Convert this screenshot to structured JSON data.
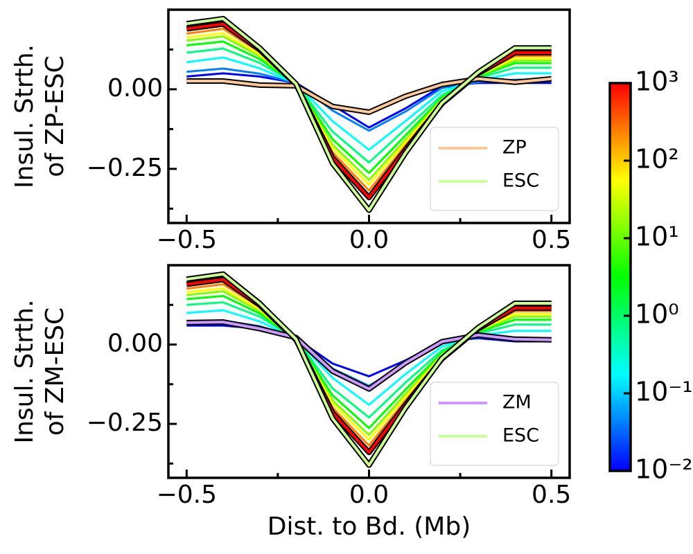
{
  "chart_data": [
    {
      "type": "line",
      "ylabel": [
        "Insul. Strth.",
        "of ZP-ESC"
      ],
      "x": [
        -0.5,
        -0.4,
        -0.3,
        -0.2,
        -0.1,
        0,
        0.1,
        0.2,
        0.3,
        0.4,
        0.5
      ],
      "xlim": [
        -0.55,
        0.55
      ],
      "ylim": [
        -0.42,
        0.25
      ],
      "xticks": [
        {
          "value": -0.5,
          "label": "−0.5"
        },
        {
          "value": 0,
          "label": "0.0"
        },
        0.5
      ],
      "xminor": [
        -0.25,
        0.25
      ],
      "yticks": [
        {
          "value": -0.25,
          "label": "−0.25"
        },
        {
          "value": 0,
          "label": "0.00"
        }
      ],
      "yminor": [
        -0.375,
        -0.125,
        0.125
      ],
      "legend": "lower right",
      "series": [
        {
          "color": "#0000ff",
          "values": [
            0.04,
            0.05,
            0.04,
            0.02,
            -0.05,
            -0.12,
            -0.06,
            0.01,
            0.02,
            0.02,
            0.02
          ]
        },
        {
          "color": "#0080ff",
          "values": [
            0.055,
            0.065,
            0.049,
            0.02,
            -0.067,
            -0.13,
            -0.07,
            0.004,
            0.023,
            0.03,
            0.03
          ]
        },
        {
          "color": "#00ffff",
          "values": [
            0.085,
            0.1,
            0.066,
            0.018,
            -0.1,
            -0.19,
            -0.1,
            -0.006,
            0.029,
            0.05,
            0.05
          ]
        },
        {
          "color": "#00ff80",
          "values": [
            0.115,
            0.128,
            0.083,
            0.018,
            -0.133,
            -0.23,
            -0.125,
            -0.018,
            0.035,
            0.068,
            0.068
          ]
        },
        {
          "color": "#00ff00",
          "values": [
            0.138,
            0.15,
            0.095,
            0.017,
            -0.157,
            -0.263,
            -0.145,
            -0.026,
            0.04,
            0.082,
            0.082
          ]
        },
        {
          "color": "#80ff00",
          "values": [
            0.153,
            0.166,
            0.104,
            0.016,
            -0.174,
            -0.285,
            -0.158,
            -0.031,
            0.043,
            0.09,
            0.09
          ]
        },
        {
          "color": "#ffff00",
          "values": [
            0.163,
            0.176,
            0.11,
            0.016,
            -0.185,
            -0.3,
            -0.166,
            -0.035,
            0.045,
            0.097,
            0.097
          ]
        },
        {
          "color": "#ff8000",
          "values": [
            0.175,
            0.19,
            0.117,
            0.016,
            -0.198,
            -0.318,
            -0.176,
            -0.04,
            0.047,
            0.105,
            0.105
          ]
        },
        {
          "color": "#ff0000",
          "edgecolor": "#000000",
          "values": [
            0.19,
            0.205,
            0.125,
            0.015,
            -0.215,
            -0.34,
            -0.19,
            -0.045,
            0.05,
            0.115,
            0.115
          ]
        },
        {
          "name": "ZP",
          "color": "#ffc898",
          "edgecolor": "#000000",
          "values": [
            0.026,
            0.026,
            0.013,
            0.011,
            -0.054,
            -0.072,
            -0.022,
            0.015,
            0.033,
            0.022,
            0.033
          ]
        },
        {
          "name": "ESC",
          "color": "#ccff99",
          "edgecolor": "#000000",
          "values": [
            0.206,
            0.222,
            0.13,
            0.017,
            -0.233,
            -0.38,
            -0.2,
            -0.043,
            0.054,
            0.13,
            0.13
          ]
        }
      ]
    },
    {
      "type": "line",
      "ylabel": [
        "Insul. Strth.",
        "of ZM-ESC"
      ],
      "xlabel": "Dist. to Bd. (Mb)",
      "x": [
        -0.5,
        -0.4,
        -0.3,
        -0.2,
        -0.1,
        0,
        0.1,
        0.2,
        0.3,
        0.4,
        0.5
      ],
      "xlim": [
        -0.55,
        0.55
      ],
      "ylim": [
        -0.42,
        0.25
      ],
      "xticks": [
        {
          "value": -0.5,
          "label": "−0.5"
        },
        {
          "value": 0,
          "label": "0.0"
        },
        0.5
      ],
      "xminor": [
        -0.25,
        0.25
      ],
      "yticks": [
        {
          "value": -0.25,
          "label": "−0.25"
        },
        {
          "value": 0,
          "label": "0.00"
        }
      ],
      "yminor": [
        -0.375,
        -0.125,
        0.125
      ],
      "legend": "lower right",
      "series": [
        {
          "color": "#0000ff",
          "values": [
            0.06,
            0.06,
            0.05,
            0.02,
            -0.06,
            -0.1,
            -0.05,
            0.01,
            0.02,
            0.01,
            0.01
          ]
        },
        {
          "color": "#0080ff",
          "values": [
            0.072,
            0.075,
            0.058,
            0.02,
            -0.076,
            -0.13,
            -0.063,
            0.004,
            0.023,
            0.02,
            0.02
          ]
        },
        {
          "color": "#00ffff",
          "values": [
            0.1,
            0.108,
            0.073,
            0.018,
            -0.105,
            -0.19,
            -0.093,
            -0.006,
            0.029,
            0.043,
            0.043
          ]
        },
        {
          "color": "#00ff80",
          "values": [
            0.125,
            0.133,
            0.088,
            0.018,
            -0.138,
            -0.23,
            -0.12,
            -0.018,
            0.035,
            0.063,
            0.063
          ]
        },
        {
          "color": "#00ff00",
          "values": [
            0.143,
            0.153,
            0.098,
            0.017,
            -0.16,
            -0.263,
            -0.142,
            -0.026,
            0.04,
            0.078,
            0.078
          ]
        },
        {
          "color": "#80ff00",
          "values": [
            0.156,
            0.168,
            0.106,
            0.016,
            -0.176,
            -0.285,
            -0.156,
            -0.031,
            0.043,
            0.088,
            0.088
          ]
        },
        {
          "color": "#ffff00",
          "values": [
            0.165,
            0.177,
            0.111,
            0.016,
            -0.186,
            -0.3,
            -0.165,
            -0.035,
            0.045,
            0.096,
            0.096
          ]
        },
        {
          "color": "#ff8000",
          "values": [
            0.176,
            0.19,
            0.118,
            0.016,
            -0.199,
            -0.318,
            -0.176,
            -0.04,
            0.047,
            0.105,
            0.105
          ]
        },
        {
          "color": "#ff0000",
          "edgecolor": "#000000",
          "values": [
            0.19,
            0.205,
            0.125,
            0.015,
            -0.215,
            -0.34,
            -0.19,
            -0.045,
            0.05,
            0.115,
            0.115
          ]
        },
        {
          "name": "ZM",
          "color": "#cc99ff",
          "edgecolor": "#000000",
          "values": [
            0.069,
            0.071,
            0.05,
            0.022,
            -0.084,
            -0.14,
            -0.058,
            0.009,
            0.03,
            0.017,
            0.015
          ]
        },
        {
          "name": "ESC",
          "color": "#ccff99",
          "edgecolor": "#000000",
          "values": [
            0.206,
            0.222,
            0.13,
            0.017,
            -0.233,
            -0.38,
            -0.2,
            -0.043,
            0.054,
            0.13,
            0.13
          ]
        }
      ]
    },
    {
      "type": "colorbar",
      "scale": "log",
      "lim": [
        0.01,
        1000
      ],
      "ticks": [
        {
          "value": 0.01,
          "label": "10⁻²"
        },
        {
          "value": 0.1,
          "label": "10⁻¹"
        },
        {
          "value": 1,
          "label": "10⁰"
        },
        {
          "value": 10,
          "label": "10¹"
        },
        {
          "value": 100,
          "label": "10²"
        },
        {
          "value": 1000,
          "label": "10³"
        }
      ],
      "colormap": [
        "#0000ff",
        "#0080ff",
        "#00ffff",
        "#00ff80",
        "#00ff00",
        "#80ff00",
        "#ffff00",
        "#ff8000",
        "#ff0000"
      ]
    }
  ]
}
